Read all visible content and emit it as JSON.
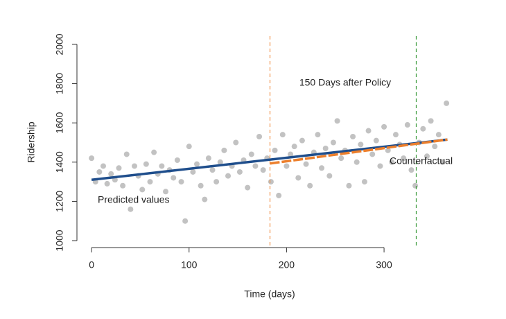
{
  "chart_data": {
    "type": "scatter",
    "x_label": "Time (days)",
    "y_label": "Ridership",
    "xlim": [
      -15,
      380
    ],
    "ylim": [
      1000,
      2000
    ],
    "xticks": [
      0,
      100,
      200,
      300
    ],
    "yticks": [
      1000,
      1200,
      1400,
      1600,
      1800,
      2000
    ],
    "points": {
      "color": "#9a9a9a",
      "x": [
        0,
        4,
        8,
        12,
        16,
        20,
        24,
        28,
        32,
        36,
        40,
        44,
        48,
        52,
        56,
        60,
        64,
        68,
        72,
        76,
        80,
        84,
        88,
        92,
        96,
        100,
        104,
        108,
        112,
        116,
        120,
        124,
        128,
        132,
        136,
        140,
        144,
        148,
        152,
        156,
        160,
        164,
        168,
        172,
        176,
        180,
        184,
        188,
        192,
        196,
        200,
        204,
        208,
        212,
        216,
        220,
        224,
        228,
        232,
        236,
        240,
        244,
        248,
        252,
        256,
        260,
        264,
        268,
        272,
        276,
        280,
        284,
        288,
        292,
        296,
        300,
        304,
        308,
        312,
        316,
        320,
        324,
        328,
        332,
        336,
        340,
        344,
        348,
        352,
        356,
        360,
        364
      ],
      "y": [
        1420,
        1300,
        1350,
        1380,
        1290,
        1340,
        1310,
        1370,
        1280,
        1440,
        1160,
        1380,
        1330,
        1260,
        1390,
        1300,
        1450,
        1340,
        1380,
        1250,
        1360,
        1320,
        1410,
        1300,
        1100,
        1480,
        1350,
        1390,
        1280,
        1210,
        1420,
        1360,
        1300,
        1400,
        1460,
        1330,
        1380,
        1500,
        1350,
        1410,
        1270,
        1440,
        1380,
        1530,
        1360,
        1420,
        1300,
        1460,
        1230,
        1540,
        1380,
        1440,
        1480,
        1320,
        1510,
        1390,
        1280,
        1450,
        1540,
        1370,
        1470,
        1330,
        1500,
        1610,
        1420,
        1460,
        1280,
        1530,
        1400,
        1490,
        1300,
        1560,
        1440,
        1510,
        1380,
        1580,
        1460,
        1400,
        1540,
        1490,
        1420,
        1590,
        1360,
        1280,
        1500,
        1570,
        1430,
        1610,
        1480,
        1540,
        1400,
        1700
      ]
    },
    "lines": [
      {
        "label": "Predicted values",
        "color": "#1f4e8c",
        "label_color": "#2b7bba",
        "x": [
          0,
          365
        ],
        "y": [
          1310,
          1515
        ]
      },
      {
        "label": "Counterfactual",
        "color": "#ec7f2c",
        "label_color": "#ec7f2c",
        "x": [
          183,
          365
        ],
        "y": [
          1393,
          1515
        ]
      }
    ],
    "vlines": [
      {
        "x": 183,
        "color": "#f0944c"
      },
      {
        "x": 333,
        "color": "#3a9a3a"
      }
    ],
    "annotation": {
      "text": "150 Days after Policy",
      "color": "#3a9a3a"
    }
  }
}
